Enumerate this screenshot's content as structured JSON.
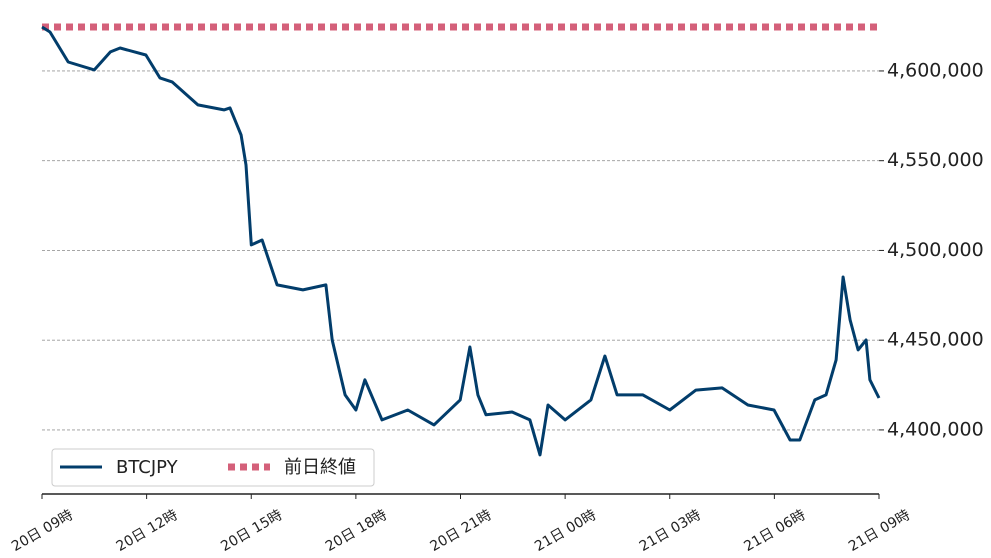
{
  "chart_data": {
    "type": "line",
    "series": [
      {
        "name": "BTCJPY",
        "color": "#023d6b",
        "x": [
          0,
          0.23,
          0.75,
          1.5,
          1.96,
          2.24,
          2.98,
          3.38,
          3.73,
          4.47,
          5.22,
          5.39,
          5.71,
          5.85,
          6.0,
          6.31,
          6.74,
          7.48,
          8.14,
          8.32,
          8.69,
          9.0,
          9.26,
          9.75,
          10.49,
          11.24,
          11.99,
          12.27,
          12.5,
          12.73,
          13.48,
          13.99,
          14.28,
          14.51,
          15.0,
          15.74,
          16.14,
          16.49,
          17.23,
          18.0,
          18.75,
          19.5,
          20.24,
          20.99,
          21.45,
          21.73,
          22.16,
          22.48,
          22.77,
          22.97,
          23.17,
          23.4,
          23.63,
          23.74,
          24.0
        ],
        "values": [
          4624500,
          4621700,
          4605000,
          4600600,
          4610600,
          4612800,
          4608900,
          4596100,
          4593900,
          4581100,
          4578300,
          4579400,
          4564300,
          4547600,
          4503100,
          4505800,
          4480800,
          4478000,
          4480800,
          4450100,
          4419500,
          4411100,
          4427900,
          4405600,
          4411100,
          4402800,
          4416700,
          4446200,
          4419500,
          4408400,
          4410000,
          4405600,
          4386100,
          4413900,
          4405600,
          4416700,
          4441200,
          4419500,
          4419500,
          4411100,
          4422200,
          4423400,
          4413900,
          4411100,
          4394400,
          4394400,
          4416700,
          4419500,
          4439000,
          4485200,
          4461300,
          4444600,
          4450100,
          4427900,
          4417800
        ]
      }
    ],
    "reference": {
      "name": "前日終値",
      "value": 4624500,
      "color": "#d4607a"
    },
    "xlim": [
      0,
      24
    ],
    "xticks": [
      {
        "value": 0,
        "label": "20日 09時"
      },
      {
        "value": 3,
        "label": "20日 12時"
      },
      {
        "value": 6,
        "label": "20日 15時"
      },
      {
        "value": 9,
        "label": "20日 18時"
      },
      {
        "value": 12,
        "label": "20日 21時"
      },
      {
        "value": 15,
        "label": "21日 00時"
      },
      {
        "value": 18,
        "label": "21日 03時"
      },
      {
        "value": 21,
        "label": "21日 06時"
      },
      {
        "value": 24,
        "label": "21日 09時"
      }
    ],
    "ylim": [
      4364300,
      4629500
    ],
    "yticks": [
      {
        "value": 4400000,
        "label": "4,400,000"
      },
      {
        "value": 4450000,
        "label": "4,450,000"
      },
      {
        "value": 4500000,
        "label": "4,500,000"
      },
      {
        "value": 4550000,
        "label": "4,550,000"
      },
      {
        "value": 4600000,
        "label": "4,600,000"
      }
    ],
    "grid": true,
    "legend": "lower left"
  }
}
